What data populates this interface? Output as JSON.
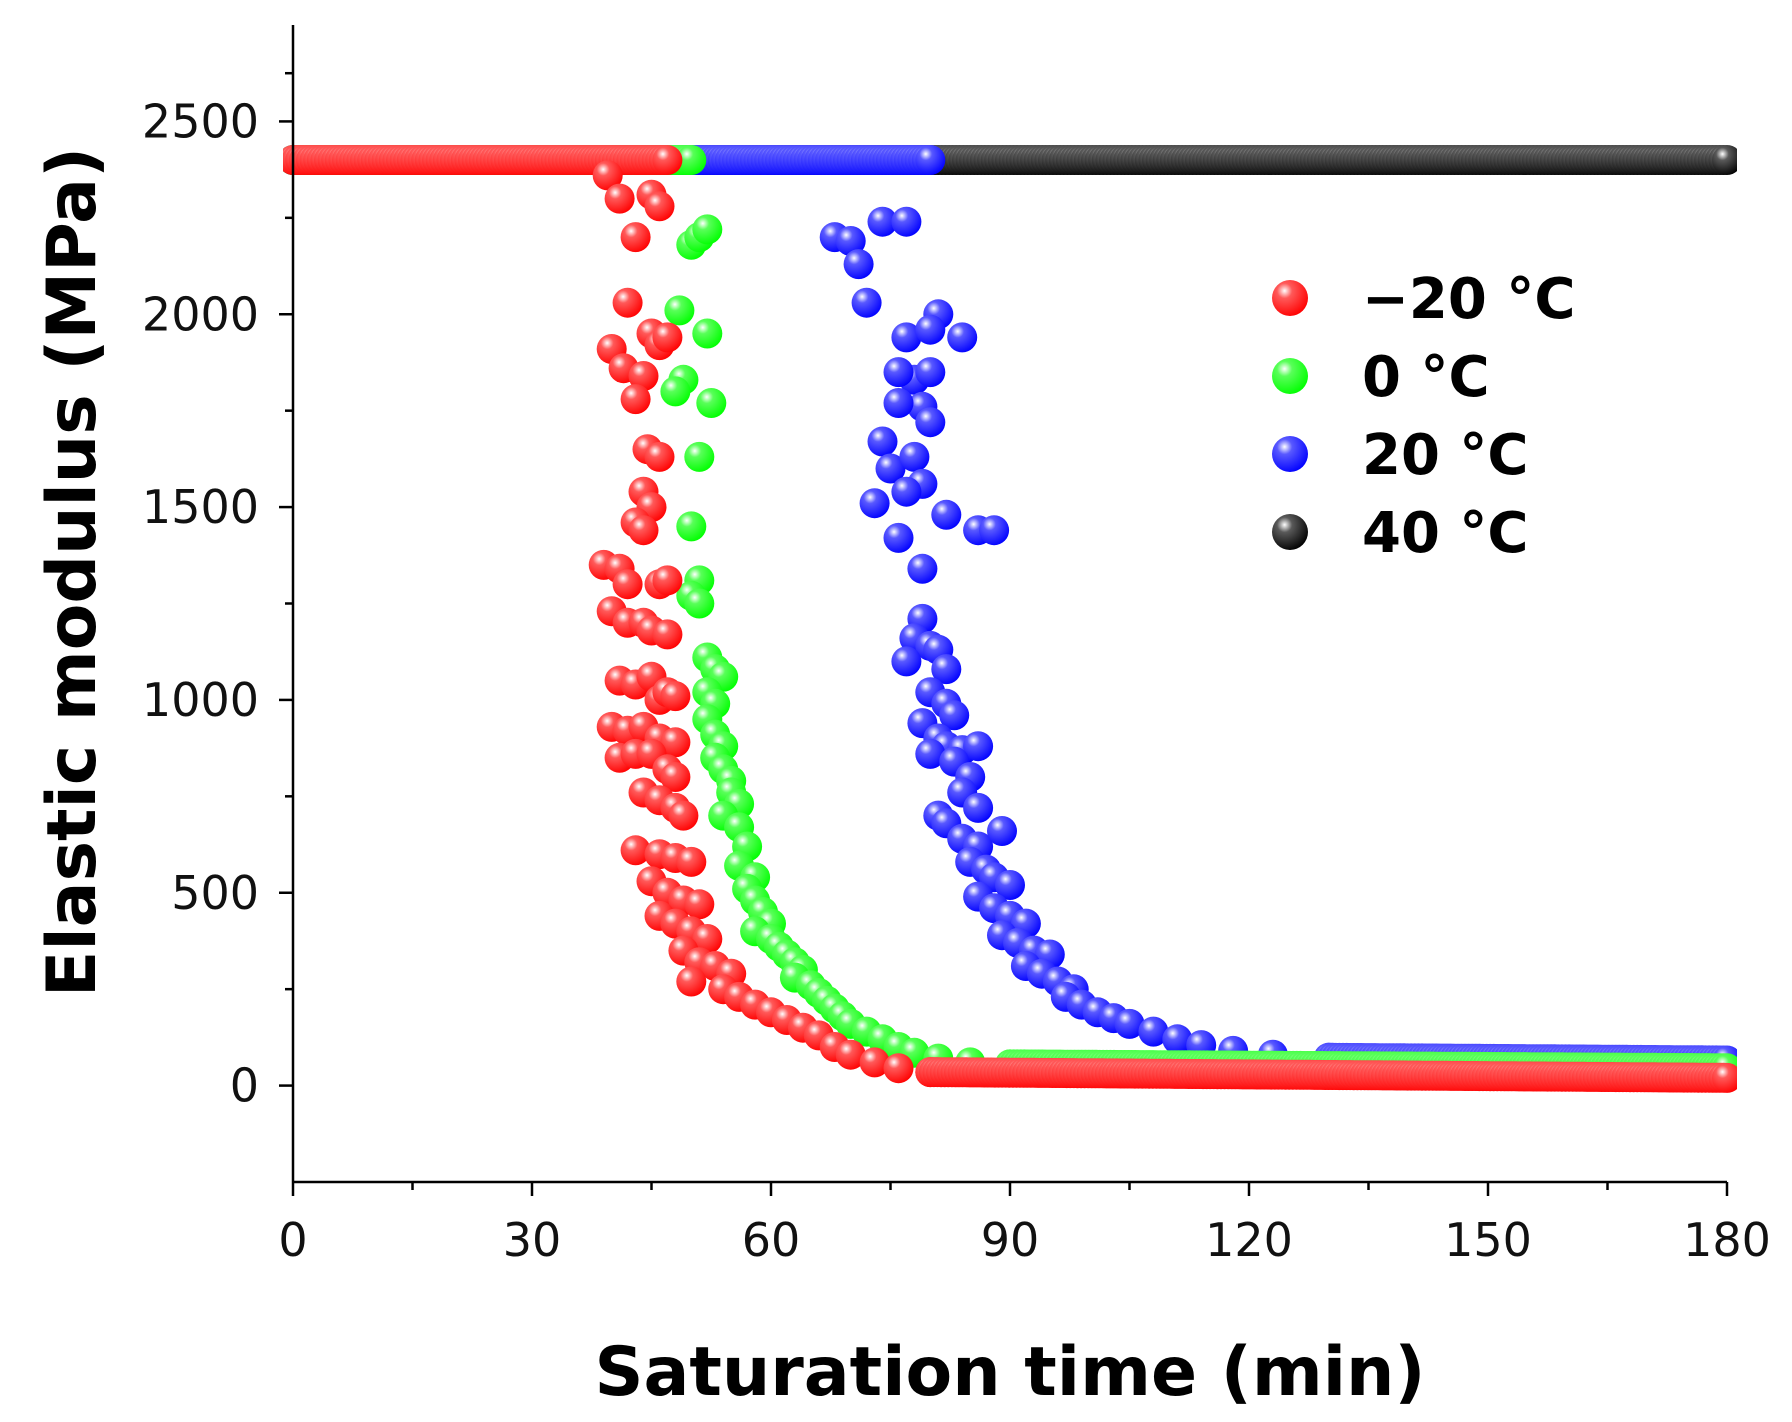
{
  "chart_data": {
    "type": "scatter",
    "title": "",
    "xlabel": "Saturation time (min)",
    "ylabel": "Elastic modulus (MPa)",
    "xlim": [
      0,
      180
    ],
    "ylim": [
      -250,
      2750
    ],
    "xticks": [
      0,
      30,
      60,
      90,
      120,
      150,
      180
    ],
    "yticks": [
      0,
      500,
      1000,
      1500,
      2000,
      2500
    ],
    "legend_position": "top-right",
    "grid": false,
    "series": [
      {
        "name": "−20 °C",
        "color": "#ff0000",
        "plateau": {
          "x_start": 0,
          "x_end": 47,
          "y": 2400
        },
        "drop_points": [
          [
            39.5,
            2360
          ],
          [
            41,
            2300
          ],
          [
            45,
            2310
          ],
          [
            46,
            2280
          ],
          [
            43,
            2200
          ],
          [
            42,
            2030
          ],
          [
            40,
            1910
          ],
          [
            41.5,
            1860
          ],
          [
            44,
            1840
          ],
          [
            43,
            1780
          ],
          [
            45,
            1950
          ],
          [
            46,
            1920
          ],
          [
            47,
            1940
          ],
          [
            44.5,
            1650
          ],
          [
            46,
            1630
          ],
          [
            44,
            1540
          ],
          [
            45,
            1500
          ],
          [
            43,
            1460
          ],
          [
            44,
            1440
          ],
          [
            39,
            1350
          ],
          [
            41,
            1340
          ],
          [
            42,
            1300
          ],
          [
            46,
            1300
          ],
          [
            47,
            1310
          ],
          [
            40,
            1230
          ],
          [
            42,
            1200
          ],
          [
            44,
            1200
          ],
          [
            45,
            1180
          ],
          [
            47,
            1170
          ],
          [
            41,
            1050
          ],
          [
            43,
            1040
          ],
          [
            45,
            1060
          ],
          [
            46,
            1000
          ],
          [
            47,
            1020
          ],
          [
            48,
            1010
          ],
          [
            40,
            930
          ],
          [
            42,
            920
          ],
          [
            44,
            930
          ],
          [
            46,
            900
          ],
          [
            48,
            890
          ],
          [
            41,
            850
          ],
          [
            43,
            860
          ],
          [
            45,
            860
          ],
          [
            47,
            820
          ],
          [
            48,
            800
          ],
          [
            44,
            760
          ],
          [
            46,
            740
          ],
          [
            48,
            720
          ],
          [
            49,
            700
          ],
          [
            43,
            610
          ],
          [
            46,
            600
          ],
          [
            48,
            590
          ],
          [
            50,
            580
          ],
          [
            45,
            530
          ],
          [
            47,
            500
          ],
          [
            49,
            480
          ],
          [
            51,
            470
          ],
          [
            46,
            440
          ],
          [
            48,
            420
          ],
          [
            50,
            400
          ],
          [
            52,
            380
          ],
          [
            49,
            350
          ],
          [
            51,
            320
          ],
          [
            53,
            310
          ],
          [
            55,
            290
          ],
          [
            50,
            270
          ],
          [
            54,
            250
          ],
          [
            56,
            230
          ],
          [
            58,
            210
          ],
          [
            60,
            190
          ],
          [
            62,
            170
          ],
          [
            64,
            150
          ],
          [
            66,
            130
          ],
          [
            68,
            100
          ],
          [
            70,
            80
          ],
          [
            73,
            60
          ],
          [
            76,
            45
          ],
          [
            80,
            35
          ]
        ],
        "tail": {
          "x_start": 80,
          "x_end": 180,
          "y_start": 35,
          "y_end": 20
        }
      },
      {
        "name": "0 °C",
        "color": "#00ff00",
        "plateau": {
          "x_start": 0,
          "x_end": 50,
          "y": 2400
        },
        "drop_points": [
          [
            50,
            2180
          ],
          [
            51,
            2200
          ],
          [
            52,
            2220
          ],
          [
            48.5,
            2010
          ],
          [
            52,
            1950
          ],
          [
            49,
            1830
          ],
          [
            48,
            1800
          ],
          [
            52.5,
            1770
          ],
          [
            51,
            1630
          ],
          [
            50,
            1450
          ],
          [
            51,
            1310
          ],
          [
            50,
            1270
          ],
          [
            51,
            1250
          ],
          [
            52,
            1110
          ],
          [
            53,
            1080
          ],
          [
            54,
            1060
          ],
          [
            52,
            1020
          ],
          [
            53,
            990
          ],
          [
            52,
            950
          ],
          [
            53,
            910
          ],
          [
            54,
            880
          ],
          [
            53,
            850
          ],
          [
            54,
            820
          ],
          [
            55,
            790
          ],
          [
            55,
            760
          ],
          [
            56,
            730
          ],
          [
            54,
            700
          ],
          [
            56,
            670
          ],
          [
            57,
            620
          ],
          [
            56,
            570
          ],
          [
            58,
            540
          ],
          [
            57,
            510
          ],
          [
            58,
            480
          ],
          [
            59,
            450
          ],
          [
            60,
            420
          ],
          [
            58,
            400
          ],
          [
            60,
            380
          ],
          [
            61,
            360
          ],
          [
            62,
            340
          ],
          [
            63,
            320
          ],
          [
            64,
            300
          ],
          [
            63,
            280
          ],
          [
            65,
            260
          ],
          [
            66,
            240
          ],
          [
            67,
            220
          ],
          [
            68,
            200
          ],
          [
            69,
            180
          ],
          [
            70,
            160
          ],
          [
            72,
            140
          ],
          [
            74,
            120
          ],
          [
            76,
            100
          ],
          [
            78,
            85
          ],
          [
            81,
            70
          ],
          [
            85,
            60
          ],
          [
            90,
            55
          ]
        ],
        "tail": {
          "x_start": 90,
          "x_end": 180,
          "y_start": 55,
          "y_end": 45
        }
      },
      {
        "name": "20 °C",
        "color": "#0000ff",
        "plateau": {
          "x_start": 0,
          "x_end": 80,
          "y": 2400
        },
        "drop_points": [
          [
            68,
            2200
          ],
          [
            70,
            2190
          ],
          [
            74,
            2240
          ],
          [
            77,
            2240
          ],
          [
            71,
            2130
          ],
          [
            72,
            2030
          ],
          [
            81,
            2000
          ],
          [
            84,
            1940
          ],
          [
            77,
            1940
          ],
          [
            80,
            1960
          ],
          [
            78,
            1830
          ],
          [
            76,
            1850
          ],
          [
            80,
            1850
          ],
          [
            79,
            1760
          ],
          [
            76,
            1770
          ],
          [
            80,
            1720
          ],
          [
            74,
            1670
          ],
          [
            75,
            1600
          ],
          [
            78,
            1630
          ],
          [
            79,
            1560
          ],
          [
            77,
            1540
          ],
          [
            73,
            1510
          ],
          [
            82,
            1480
          ],
          [
            86,
            1440
          ],
          [
            88,
            1440
          ],
          [
            76,
            1420
          ],
          [
            79,
            1340
          ],
          [
            79,
            1210
          ],
          [
            78,
            1160
          ],
          [
            80,
            1140
          ],
          [
            81,
            1130
          ],
          [
            82,
            1080
          ],
          [
            77,
            1100
          ],
          [
            80,
            1020
          ],
          [
            82,
            990
          ],
          [
            83,
            960
          ],
          [
            79,
            940
          ],
          [
            81,
            900
          ],
          [
            82,
            880
          ],
          [
            84,
            870
          ],
          [
            86,
            880
          ],
          [
            80,
            860
          ],
          [
            83,
            840
          ],
          [
            85,
            800
          ],
          [
            84,
            760
          ],
          [
            86,
            720
          ],
          [
            81,
            700
          ],
          [
            82,
            680
          ],
          [
            84,
            640
          ],
          [
            86,
            620
          ],
          [
            89,
            660
          ],
          [
            85,
            580
          ],
          [
            87,
            560
          ],
          [
            88,
            540
          ],
          [
            90,
            520
          ],
          [
            86,
            490
          ],
          [
            88,
            460
          ],
          [
            90,
            440
          ],
          [
            92,
            420
          ],
          [
            89,
            390
          ],
          [
            91,
            370
          ],
          [
            93,
            350
          ],
          [
            95,
            340
          ],
          [
            92,
            310
          ],
          [
            94,
            290
          ],
          [
            96,
            270
          ],
          [
            98,
            250
          ],
          [
            97,
            230
          ],
          [
            99,
            210
          ],
          [
            101,
            190
          ],
          [
            103,
            175
          ],
          [
            105,
            160
          ],
          [
            108,
            140
          ],
          [
            111,
            120
          ],
          [
            114,
            105
          ],
          [
            118,
            90
          ],
          [
            123,
            80
          ],
          [
            130,
            72
          ]
        ],
        "tail": {
          "x_start": 130,
          "x_end": 180,
          "y_start": 72,
          "y_end": 65
        }
      },
      {
        "name": "40 °C",
        "color": "#000000",
        "plateau": {
          "x_start": 0,
          "x_end": 180,
          "y": 2400
        },
        "drop_points": [],
        "tail": null
      }
    ]
  }
}
